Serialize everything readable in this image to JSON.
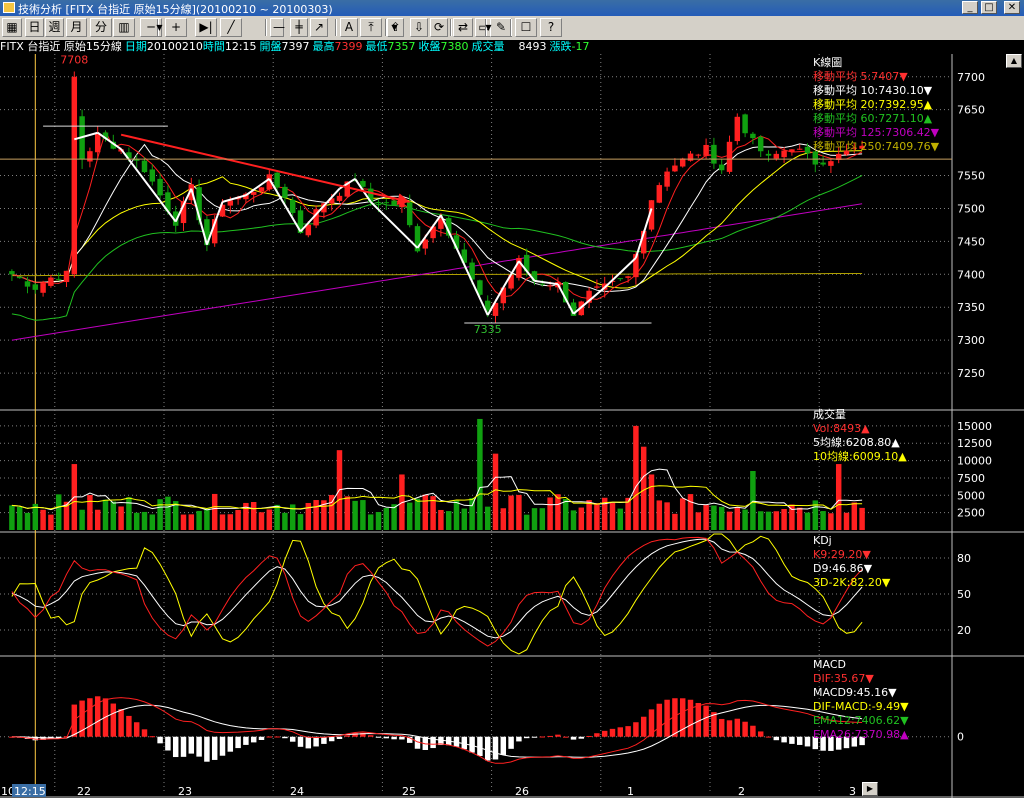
{
  "window": {
    "title": "技術分析 [FITX 台指近 原始15分線](20100210 ~ 20100303)",
    "minimize": "_",
    "maximize": "□",
    "close": "✕"
  },
  "toolbar": {
    "buttons": [
      {
        "name": "grid-icon",
        "label": "▦"
      },
      {
        "name": "period-day-button",
        "label": "日"
      },
      {
        "name": "period-week-button",
        "label": "週"
      },
      {
        "name": "period-month-button",
        "label": "月"
      },
      {
        "name": "period-minute-button",
        "label": "分"
      },
      {
        "name": "zoom-x-button",
        "label": "▥"
      },
      {
        "name": "zoom-out-button",
        "label": "─"
      },
      {
        "name": "zoom-in-button",
        "label": "+"
      },
      {
        "name": "scroll-end-button",
        "label": "▶|"
      },
      {
        "name": "draw-line-button",
        "label": "╱"
      },
      {
        "name": "draw-hline-button",
        "label": "—"
      },
      {
        "name": "draw-parallel-button",
        "label": "╪"
      },
      {
        "name": "draw-fan-button",
        "label": "↗"
      },
      {
        "name": "draw-text-button",
        "label": "A"
      },
      {
        "name": "scroll-top-button",
        "label": "⤒"
      },
      {
        "name": "scroll-up-button",
        "label": "⇧"
      },
      {
        "name": "scroll-down-button",
        "label": "⇩"
      },
      {
        "name": "refresh-button",
        "label": "⟳"
      },
      {
        "name": "sync-button",
        "label": "⇄"
      },
      {
        "name": "window-button",
        "label": "▭"
      },
      {
        "name": "tools-button",
        "label": "✎"
      },
      {
        "name": "settings-button",
        "label": "☐"
      },
      {
        "name": "help-button",
        "label": "?"
      }
    ]
  },
  "info": {
    "symbol": "FITX 台指近 原始15分線",
    "date_label": "日期",
    "date": "20100210",
    "time_label": "時間",
    "time": "12:15",
    "open_label": "開盤",
    "open": "7397",
    "high_label": "最高",
    "high": "7399",
    "low_label": "最低",
    "low": "7357",
    "close_label": "收盤",
    "close": "7380",
    "vol_label": "成交量",
    "vol": "8493",
    "chg_label": "漲跌",
    "chg": "-17"
  },
  "colors": {
    "up": "#ff2020",
    "down": "#10a010",
    "ma5": "#ff2020",
    "ma10": "#ffffff",
    "ma20": "#ffff00",
    "ma60": "#20c020",
    "ma125": "#c000c0",
    "ma250": "#b0a000",
    "grid": "#808080",
    "cursor": "#ffcc44"
  },
  "price_panel": {
    "title": "K線圖",
    "legend": [
      {
        "text": "移動平均 5:7407▼",
        "color": "#ff3030"
      },
      {
        "text": "移動平均 10:7430.10▼",
        "color": "#ffffff"
      },
      {
        "text": "移動平均 20:7392.95▲",
        "color": "#ffff00"
      },
      {
        "text": "移動平均 60:7271.10▲",
        "color": "#20c020"
      },
      {
        "text": "移動平均 125:7306.42▼",
        "color": "#c000c0"
      },
      {
        "text": "移動平均 250:7409.76▼",
        "color": "#c0b000"
      }
    ],
    "high_label": "7708",
    "low_label": "7335",
    "ticks": [
      "7700",
      "7650",
      "7550",
      "7500",
      "7450",
      "7400",
      "7350",
      "7300",
      "7250"
    ],
    "tick_values": [
      7700,
      7650,
      7550,
      7500,
      7450,
      7400,
      7350,
      7300,
      7250
    ]
  },
  "volume_panel": {
    "title": "成交量",
    "legend": [
      {
        "text": "Vol:8493▲",
        "color": "#ff3030"
      },
      {
        "text": "5均線:6208.80▲",
        "color": "#ffffff"
      },
      {
        "text": "10均線:6009.10▲",
        "color": "#ffff00"
      }
    ],
    "ticks": [
      "15000",
      "12500",
      "10000",
      "7500",
      "5000",
      "2500"
    ],
    "tick_values": [
      15000,
      12500,
      10000,
      7500,
      5000,
      2500
    ]
  },
  "kd_panel": {
    "title": "KDj",
    "legend": [
      {
        "text": "K9:29.20▼",
        "color": "#ff3030"
      },
      {
        "text": "D9:46.86▼",
        "color": "#ffffff"
      },
      {
        "text": "3D-2K:82.20▼",
        "color": "#ffff00"
      }
    ],
    "ticks": [
      "80",
      "50",
      "20"
    ],
    "tick_values": [
      80,
      50,
      20
    ]
  },
  "macd_panel": {
    "title": "MACD",
    "legend": [
      {
        "text": "DIF:35.67▼",
        "color": "#ff3030"
      },
      {
        "text": "MACD9:45.16▼",
        "color": "#ffffff"
      },
      {
        "text": "DIF-MACD:-9.49▼",
        "color": "#ffff00"
      },
      {
        "text": "EMA12:7406.62▼",
        "color": "#20c020"
      },
      {
        "text": "EMA26:7370.98▲",
        "color": "#c000c0"
      }
    ],
    "ticks": [
      "0"
    ],
    "tick_values": [
      0
    ]
  },
  "x_axis": {
    "labels": [
      "10",
      "12:15",
      "22",
      "23",
      "24",
      "25",
      "26",
      "1",
      "2",
      "3"
    ]
  },
  "chart_data": {
    "type": "candlestick",
    "interval": "15分",
    "range": [
      "20100210",
      "20100303"
    ],
    "price_range": [
      7200,
      7730
    ],
    "volume_range": [
      0,
      17000
    ],
    "kd_range": [
      0,
      100
    ],
    "macd_range": [
      -80,
      110
    ],
    "days": [
      {
        "label": "10",
        "start": 0
      },
      {
        "label": "22",
        "start": 6
      },
      {
        "label": "23",
        "start": 20
      },
      {
        "label": "24",
        "start": 34
      },
      {
        "label": "25",
        "start": 48
      },
      {
        "label": "26",
        "start": 62
      },
      {
        "label": "1",
        "start": 76
      },
      {
        "label": "2",
        "start": 90
      },
      {
        "label": "3",
        "start": 104
      }
    ],
    "anchors": [
      [
        0,
        7400
      ],
      [
        3,
        7380
      ],
      [
        5,
        7395
      ],
      [
        7,
        7400
      ],
      [
        8,
        7708
      ],
      [
        9,
        7570
      ],
      [
        11,
        7610
      ],
      [
        14,
        7590
      ],
      [
        17,
        7560
      ],
      [
        21,
        7480
      ],
      [
        23,
        7530
      ],
      [
        25,
        7445
      ],
      [
        27,
        7510
      ],
      [
        30,
        7520
      ],
      [
        33,
        7545
      ],
      [
        35,
        7520
      ],
      [
        37,
        7465
      ],
      [
        40,
        7510
      ],
      [
        42,
        7525
      ],
      [
        44,
        7545
      ],
      [
        46,
        7510
      ],
      [
        50,
        7505
      ],
      [
        52,
        7440
      ],
      [
        55,
        7490
      ],
      [
        57,
        7440
      ],
      [
        59,
        7390
      ],
      [
        61,
        7335
      ],
      [
        63,
        7380
      ],
      [
        65,
        7420
      ],
      [
        67,
        7390
      ],
      [
        70,
        7385
      ],
      [
        72,
        7340
      ],
      [
        74,
        7370
      ],
      [
        76,
        7380
      ],
      [
        79,
        7395
      ],
      [
        80,
        7430
      ],
      [
        82,
        7515
      ],
      [
        84,
        7560
      ],
      [
        87,
        7580
      ],
      [
        89,
        7590
      ],
      [
        91,
        7560
      ],
      [
        93,
        7640
      ],
      [
        95,
        7600
      ],
      [
        97,
        7575
      ],
      [
        100,
        7595
      ],
      [
        103,
        7570
      ],
      [
        106,
        7580
      ],
      [
        108,
        7590
      ]
    ],
    "volume_spikes": [
      {
        "i": 8,
        "v": 9500
      },
      {
        "i": 42,
        "v": 11500
      },
      {
        "i": 50,
        "v": 8000
      },
      {
        "i": 60,
        "v": 16000
      },
      {
        "i": 62,
        "v": 11000
      },
      {
        "i": 80,
        "v": 15000
      },
      {
        "i": 81,
        "v": 12000
      },
      {
        "i": 82,
        "v": 8000
      },
      {
        "i": 95,
        "v": 8500
      },
      {
        "i": 106,
        "v": 9500
      }
    ]
  }
}
